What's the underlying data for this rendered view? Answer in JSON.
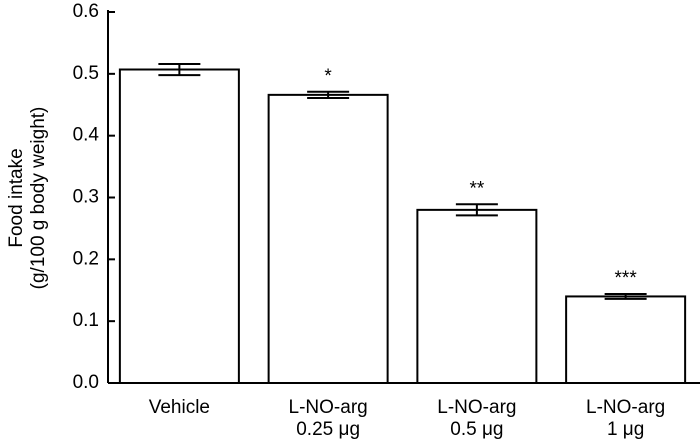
{
  "chart_data": {
    "type": "bar",
    "y_label": [
      "Food intake",
      "(g/100 g body weight)"
    ],
    "categories": [
      "Vehicle",
      "L-NO-arg\n0.25 μg",
      "L-NO-arg\n0.5 μg",
      "L-NO-arg\n1 μg"
    ],
    "values": [
      0.507,
      0.466,
      0.28,
      0.14
    ],
    "errors": [
      0.009,
      0.005,
      0.009,
      0.004
    ],
    "annotations": [
      null,
      "*",
      "**",
      "***"
    ],
    "color": "#ffffff",
    "ylim": [
      0,
      0.6
    ],
    "yticks": [
      {
        "value": 0,
        "label": "0.0"
      },
      0.1,
      0.2,
      0.3,
      0.4,
      0.5,
      0.6
    ],
    "grid": false
  }
}
